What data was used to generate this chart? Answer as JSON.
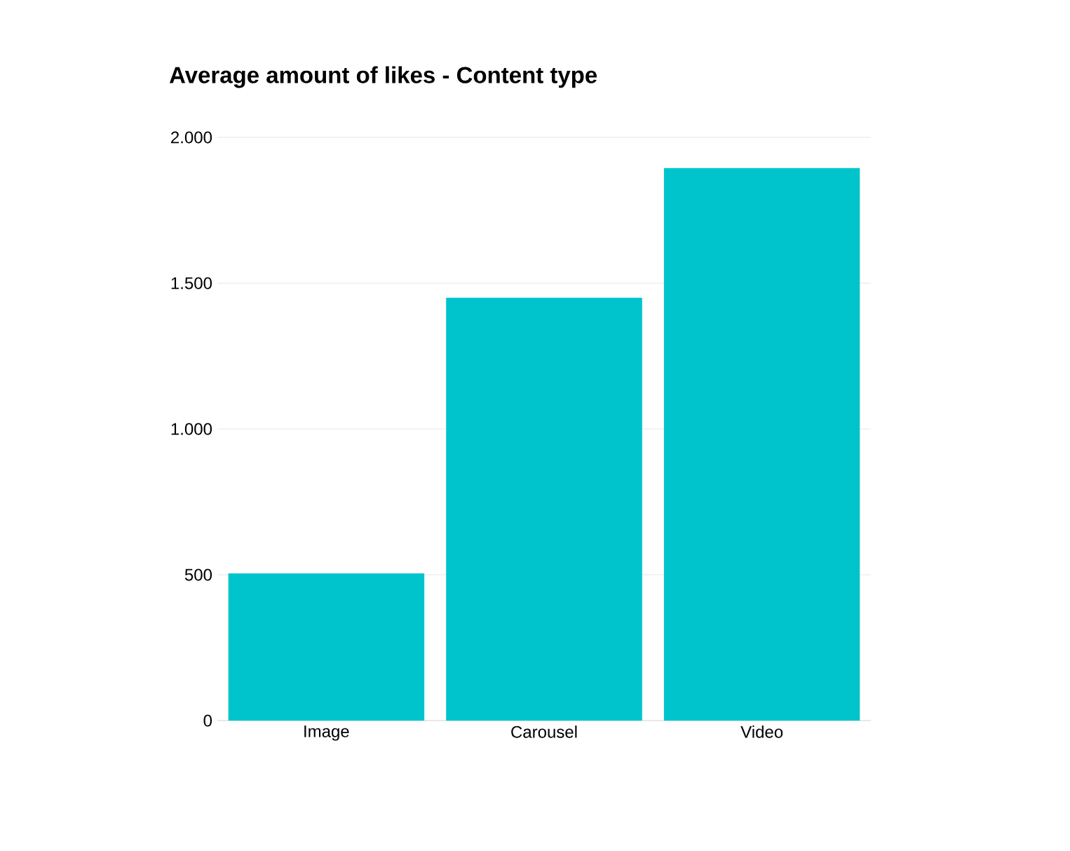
{
  "chart_data": {
    "type": "bar",
    "title": "Average amount of likes - Content type",
    "categories": [
      "Image",
      "Carousel",
      "Video"
    ],
    "values": [
      505,
      1450,
      1895
    ],
    "color": "#00c4cc",
    "ylim": [
      0,
      2000
    ],
    "yticks": [
      {
        "value": 0,
        "label": "0"
      },
      {
        "value": 500,
        "label": "500"
      },
      {
        "value": 1000,
        "label": "1.000"
      },
      {
        "value": 1500,
        "label": "1.500"
      },
      {
        "value": 2000,
        "label": "2.000"
      }
    ],
    "grid": "y"
  }
}
